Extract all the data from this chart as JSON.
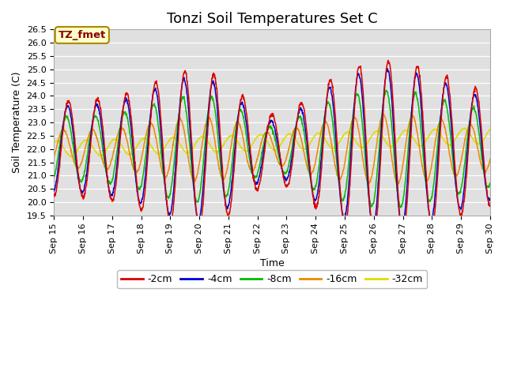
{
  "title": "Tonzi Soil Temperatures Set C",
  "xlabel": "Time",
  "ylabel": "Soil Temperature (C)",
  "ylim": [
    19.5,
    26.5
  ],
  "series_labels": [
    "-2cm",
    "-4cm",
    "-8cm",
    "-16cm",
    "-32cm"
  ],
  "series_colors": [
    "#dd0000",
    "#0000cc",
    "#00bb00",
    "#ee8800",
    "#dddd00"
  ],
  "bg_color": "#e0e0e0",
  "annotation_text": "TZ_fmet",
  "annotation_bg": "#ffffcc",
  "annotation_edge": "#aa8800",
  "annotation_text_color": "#880000",
  "xtick_labels": [
    "Sep 15",
    "Sep 16",
    "Sep 17",
    "Sep 18",
    "Sep 19",
    "Sep 20",
    "Sep 21",
    "Sep 22",
    "Sep 23",
    "Sep 24",
    "Sep 25",
    "Sep 26",
    "Sep 27",
    "Sep 28",
    "Sep 29",
    "Sep 30"
  ],
  "title_fontsize": 13,
  "axis_label_fontsize": 9,
  "tick_fontsize": 8
}
